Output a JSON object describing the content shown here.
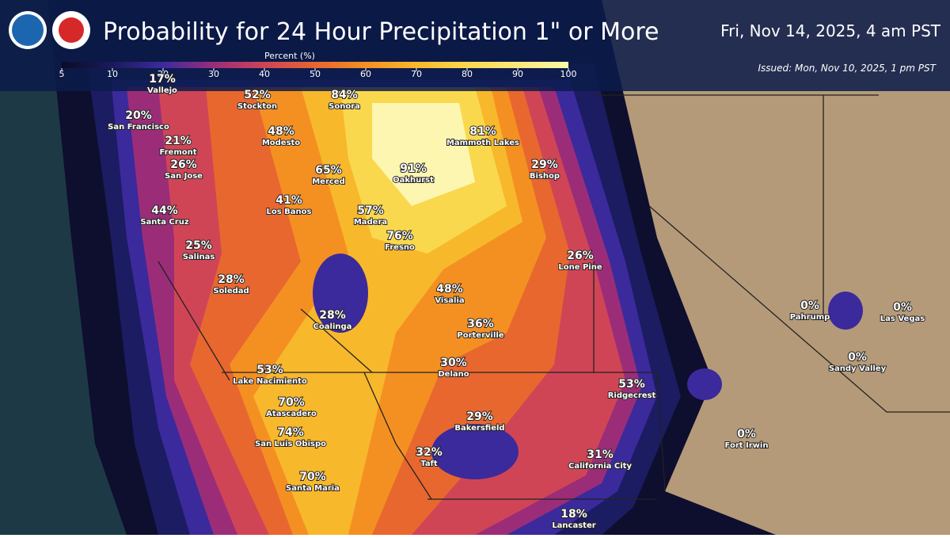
{
  "header": {
    "title": "Probability for 24 Hour Precipitation 1\" or More",
    "valid": "Fri, Nov 14, 2025, 4 am PST",
    "issued": "Issued: Mon, Nov 10, 2025, 1 pm PST"
  },
  "legend": {
    "title": "Percent (%)",
    "ticks": [
      5,
      10,
      20,
      30,
      40,
      50,
      60,
      70,
      80,
      90,
      100
    ]
  },
  "cities": [
    {
      "name": "Vallejo",
      "label": "17%"
    },
    {
      "name": "Stockton",
      "label": "52%"
    },
    {
      "name": "Sonora",
      "label": "84%"
    },
    {
      "name": "San Francisco",
      "label": "20%"
    },
    {
      "name": "Modesto",
      "label": "48%"
    },
    {
      "name": "Mammoth Lakes",
      "label": "81%"
    },
    {
      "name": "Fremont",
      "label": "21%"
    },
    {
      "name": "San Jose",
      "label": "26%"
    },
    {
      "name": "Oakhurst",
      "label": "91%"
    },
    {
      "name": "Bishop",
      "label": "29%"
    },
    {
      "name": "Merced",
      "label": "65%"
    },
    {
      "name": "Los Banos",
      "label": "41%"
    },
    {
      "name": "Madera",
      "label": "57%"
    },
    {
      "name": "Santa Cruz",
      "label": "44%"
    },
    {
      "name": "Fresno",
      "label": "76%"
    },
    {
      "name": "Salinas",
      "label": "25%"
    },
    {
      "name": "Lone Pine",
      "label": "26%"
    },
    {
      "name": "Soledad",
      "label": "28%"
    },
    {
      "name": "Visalia",
      "label": "48%"
    },
    {
      "name": "Coalinga",
      "label": "28%"
    },
    {
      "name": "Pahrump",
      "label": "0%"
    },
    {
      "name": "Las Vegas",
      "label": "0%"
    },
    {
      "name": "Porterville",
      "label": "36%"
    },
    {
      "name": "Sandy Valley",
      "label": "0%"
    },
    {
      "name": "Delano",
      "label": "30%"
    },
    {
      "name": "Lake Nacimiento",
      "label": "53%"
    },
    {
      "name": "Ridgecrest",
      "label": "53%"
    },
    {
      "name": "Atascadero",
      "label": "70%"
    },
    {
      "name": "Bakersfield",
      "label": "29%"
    },
    {
      "name": "San Luis Obispo",
      "label": "74%"
    },
    {
      "name": "Fort Irwin",
      "label": "0%"
    },
    {
      "name": "Taft",
      "label": "32%"
    },
    {
      "name": "California City",
      "label": "31%"
    },
    {
      "name": "Santa Maria",
      "label": "70%"
    },
    {
      "name": "Lancaster",
      "label": "18%"
    }
  ]
}
